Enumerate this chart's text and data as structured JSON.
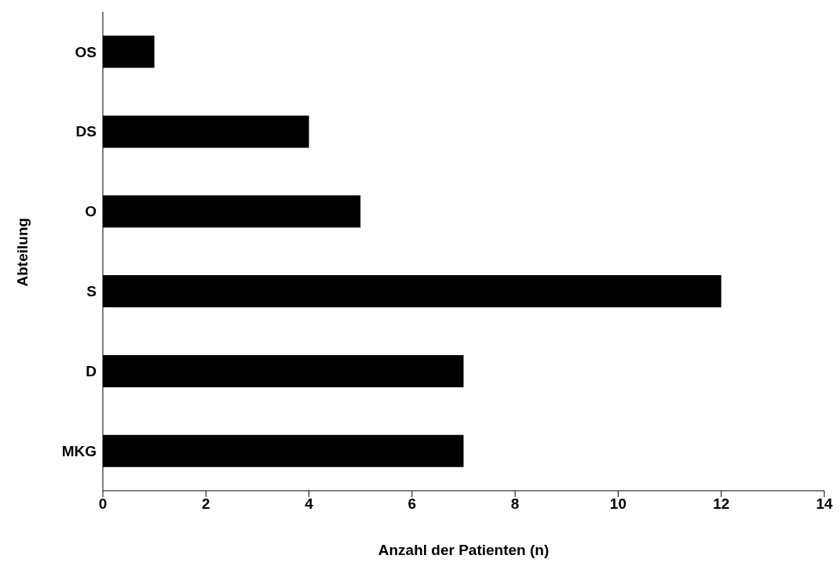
{
  "chart_data": {
    "type": "bar",
    "orientation": "horizontal",
    "xlabel": "Anzahl der Patienten (n)",
    "ylabel": "Abteilung",
    "categories": [
      "OS",
      "DS",
      "O",
      "S",
      "D",
      "MKG"
    ],
    "values": [
      1,
      4,
      5,
      12,
      7,
      7
    ],
    "color": "#000000",
    "xlim": [
      0,
      14
    ],
    "xticks": [
      0,
      2,
      4,
      6,
      8,
      10,
      12,
      14
    ],
    "grid": false,
    "legend": false
  }
}
